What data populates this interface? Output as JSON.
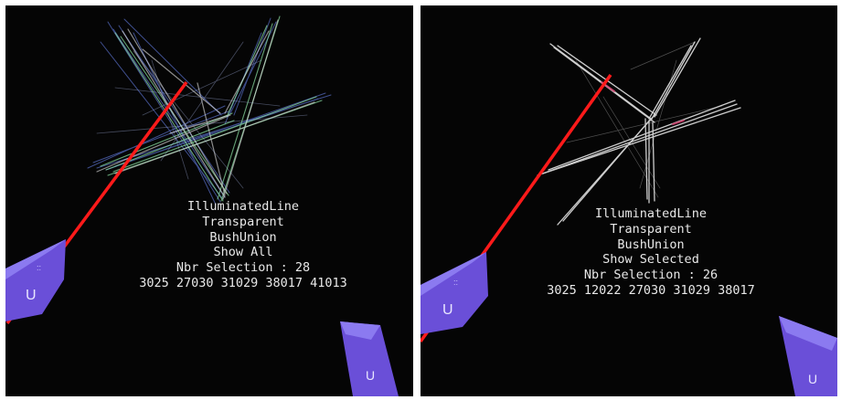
{
  "panels": [
    {
      "render_mode": "IlluminatedLine",
      "transparency": "Transparent",
      "bundling": "BushUnion",
      "show_mode": "Show All",
      "selection_count": "Nbr Selection : 28",
      "selected_ids": "3025 27030 31029 38017 41013",
      "controller_glyph": "U"
    },
    {
      "render_mode": "IlluminatedLine",
      "transparency": "Transparent",
      "bundling": "BushUnion",
      "show_mode": "Show Selected",
      "selection_count": "Nbr Selection : 26",
      "selected_ids": "3025 12022 27030 31029 38017",
      "controller_glyph": "U"
    }
  ],
  "colors": {
    "background": "#050505",
    "ray": "#ff1a1a",
    "controller": "#6a4fd8",
    "fibers_left": [
      "#7fa0ff",
      "#9fe8b0",
      "#e8e8e8"
    ],
    "fibers_right": [
      "#f2f2f2",
      "#d23b6a"
    ]
  }
}
